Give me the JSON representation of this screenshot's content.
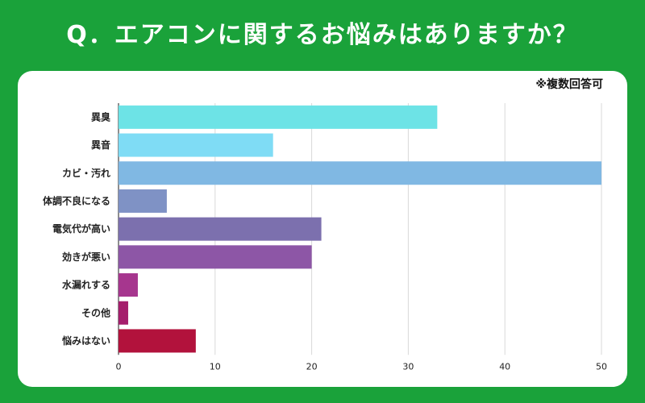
{
  "title": "Q．エアコンに関するお悩みはありますか？",
  "note": "※複数回答可",
  "chart_data": {
    "type": "bar",
    "orientation": "horizontal",
    "categories": [
      "異臭",
      "異音",
      "カビ・汚れ",
      "体調不良になる",
      "電気代が高い",
      "効きが悪い",
      "水漏れする",
      "その他",
      "悩みはない"
    ],
    "values": [
      33,
      16,
      50,
      5,
      21,
      20,
      2,
      1,
      8
    ],
    "colors": [
      "#6de3e6",
      "#7fdcf5",
      "#80b8e3",
      "#7f92c5",
      "#7c70ae",
      "#8d56a6",
      "#a6368e",
      "#a51e6c",
      "#b2123c"
    ],
    "xlim": [
      0,
      50
    ],
    "xticks": [
      0,
      10,
      20,
      30,
      40,
      50
    ],
    "xlabel": "",
    "ylabel": "",
    "grid": true
  }
}
